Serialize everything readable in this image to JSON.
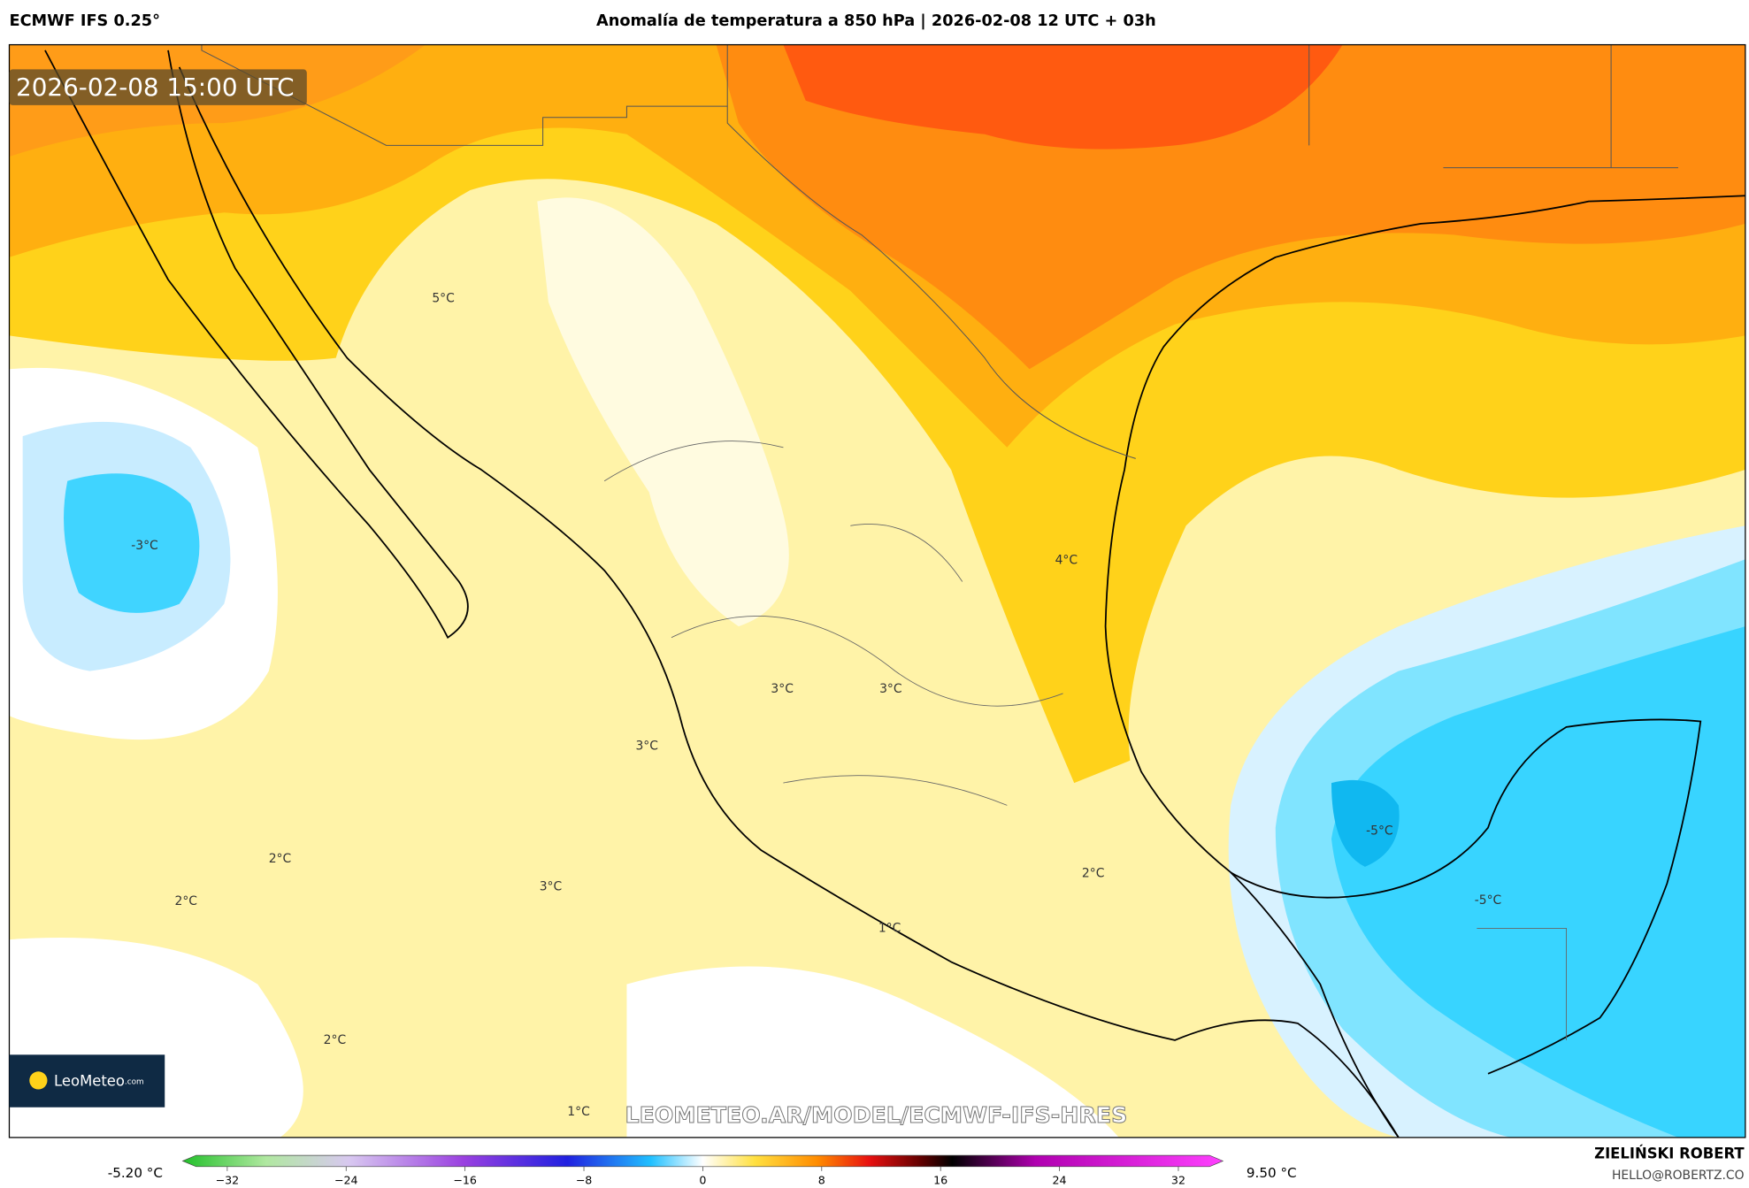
{
  "header": {
    "model": "ECMWF IFS 0.25°",
    "title": "Anomalía de temperatura a 850 hPa | 2026-02-08 12 UTC + 03h"
  },
  "map": {
    "timestamp": "2026-02-08 15:00 UTC",
    "watermark": "LEOMETEO.AR/MODEL/ECMWF-IFS-HRES",
    "logo": "LeoMeteo",
    "logo_suffix": ".com",
    "labels": [
      "5°C",
      "-3°C",
      "4°C",
      "3°C",
      "3°C",
      "3°C",
      "-5°C",
      "-5°C",
      "2°C",
      "2°C",
      "3°C",
      "2°C",
      "1°C",
      "2°C",
      "1°C"
    ]
  },
  "colorbar": {
    "min_label": "-5.20 °C",
    "max_label": "9.50 °C",
    "lim": [
      -35,
      35
    ],
    "ticks": [
      {
        "value": -32,
        "label": "−32"
      },
      {
        "value": -24,
        "label": "−24"
      },
      {
        "value": -16,
        "label": "−16"
      },
      {
        "value": -8,
        "label": "−8"
      },
      0,
      8,
      16,
      24,
      32
    ]
  },
  "footer": {
    "author": "ZIELIŃSKI ROBERT",
    "email": "HELLO@ROBERTZ.CO"
  }
}
